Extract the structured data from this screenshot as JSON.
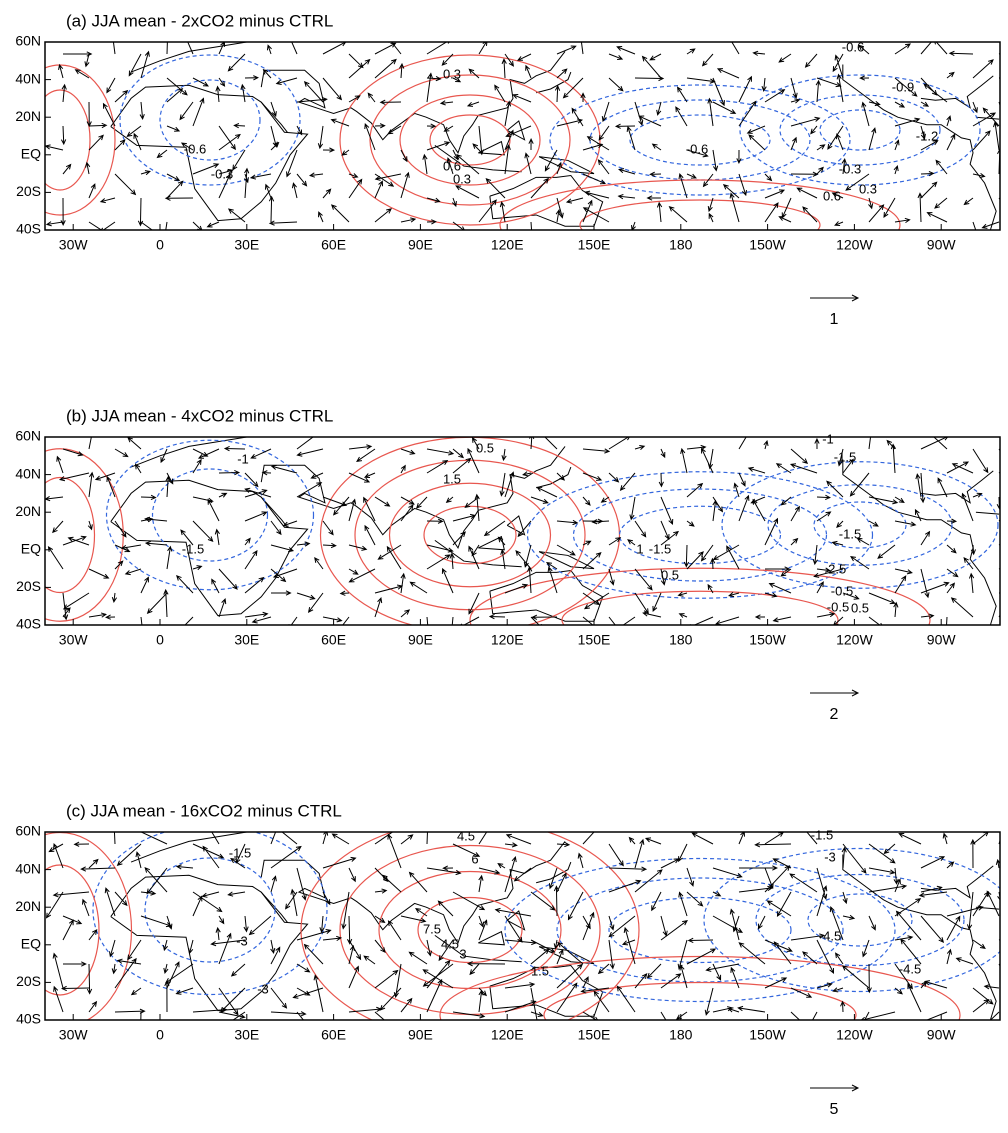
{
  "panels": [
    {
      "title": "(a) JJA mean - 2xCO2 minus CTRL",
      "reference_vector": "1",
      "contour_labels": [
        "-0.6",
        "0.3",
        "-0.9",
        "-1.2",
        "-0.6",
        "0.6",
        "-0.6",
        "-0.3",
        "0.3",
        "-0.3",
        "0.6",
        "0.3"
      ]
    },
    {
      "title": "(b) JJA mean - 4xCO2 minus CTRL",
      "reference_vector": "2",
      "contour_labels": [
        "-1",
        "0.5",
        "-1",
        "-1.5",
        "1.5",
        "-1.5",
        "-1.5",
        "1",
        "-1.5",
        "-2.5",
        "-0.5",
        "0.5",
        "-0.5",
        "0.5"
      ]
    },
    {
      "title": "(c) JJA mean - 16xCO2 minus CTRL",
      "reference_vector": "5",
      "contour_labels": [
        "4.5",
        "6",
        "-1.5",
        "-1.5",
        "-3",
        "-3",
        "7.5",
        "4.5",
        "3",
        "-3",
        "-4.5",
        "1.5",
        "-4.5"
      ]
    }
  ],
  "x_axis_labels": [
    "30W",
    "0",
    "30E",
    "60E",
    "90E",
    "120E",
    "150E",
    "180",
    "150W",
    "120W",
    "90W"
  ],
  "y_axis_labels": [
    "60N",
    "40N",
    "20N",
    "EQ",
    "20S",
    "40S"
  ],
  "colors": {
    "positive": "#e8574f",
    "negative": "#3366dd"
  }
}
